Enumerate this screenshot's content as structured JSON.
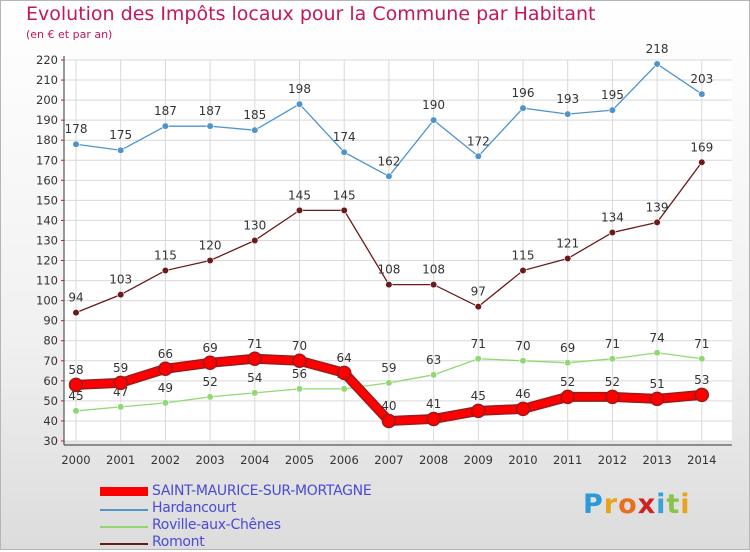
{
  "header": {
    "title": "Evolution des Impôts locaux pour la Commune par Habitant",
    "subtitle": "(en € et par an)"
  },
  "logo": {
    "letters": [
      "P",
      "r",
      "o",
      "x",
      "i",
      "t",
      "i"
    ],
    "colors": [
      "#2a9bd4",
      "#e8a31c",
      "#e8701c",
      "#cc2222",
      "#3aa0d8",
      "#8bc34a",
      "#e8a31c"
    ]
  },
  "chart_data": {
    "type": "line",
    "title": "Evolution des Impôts locaux pour la Commune par Habitant",
    "subtitle": "(en € et par an)",
    "categories": [
      "2000",
      "2001",
      "2002",
      "2003",
      "2004",
      "2005",
      "2006",
      "2007",
      "2008",
      "2009",
      "2010",
      "2011",
      "2012",
      "2013",
      "2014"
    ],
    "ylim": [
      30,
      220
    ],
    "yticks": [
      30,
      40,
      50,
      60,
      70,
      80,
      90,
      100,
      110,
      120,
      130,
      140,
      150,
      160,
      170,
      180,
      190,
      200,
      210,
      220
    ],
    "grid": true,
    "legend_position": "bottom-left",
    "series": [
      {
        "name": "SAINT-MAURICE-SUR-MORTAGNE",
        "color": "#ff0000",
        "emphasis": true,
        "values": [
          58,
          59,
          66,
          69,
          71,
          70,
          64,
          40,
          41,
          45,
          46,
          52,
          52,
          51,
          53
        ]
      },
      {
        "name": "Hardancourt",
        "color": "#4f94cd",
        "values": [
          178,
          175,
          187,
          187,
          185,
          198,
          174,
          162,
          190,
          172,
          196,
          193,
          195,
          218,
          203
        ]
      },
      {
        "name": "Roville-aux-Chênes",
        "color": "#90d870",
        "values": [
          45,
          47,
          49,
          52,
          54,
          56,
          56,
          59,
          63,
          71,
          70,
          69,
          71,
          74,
          71
        ]
      },
      {
        "name": "Romont",
        "color": "#6b1a1a",
        "values": [
          94,
          103,
          115,
          120,
          130,
          145,
          145,
          108,
          108,
          97,
          115,
          121,
          134,
          139,
          169
        ]
      }
    ]
  }
}
